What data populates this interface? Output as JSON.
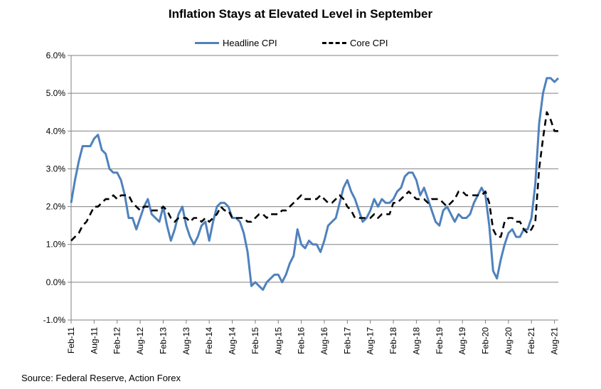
{
  "chart_data": {
    "type": "line",
    "title": "Inflation Stays at Elevated Level in September",
    "xlabel": "",
    "ylabel": "",
    "ylim": [
      -1.0,
      6.0
    ],
    "yticks": [
      "-1.0%",
      "0.0%",
      "1.0%",
      "2.0%",
      "3.0%",
      "4.0%",
      "5.0%",
      "6.0%"
    ],
    "ytick_values": [
      -1,
      0,
      1,
      2,
      3,
      4,
      5,
      6
    ],
    "x_start": "Feb-11",
    "x_end": "Sep-21",
    "xticks": [
      "Feb-11",
      "Aug-11",
      "Feb-12",
      "Aug-12",
      "Feb-13",
      "Aug-13",
      "Feb-14",
      "Aug-14",
      "Feb-15",
      "Aug-15",
      "Feb-16",
      "Aug-16",
      "Feb-17",
      "Aug-17",
      "Feb-18",
      "Aug-18",
      "Feb-19",
      "Aug-19",
      "Feb-20",
      "Aug-20",
      "Feb-21",
      "Aug-21"
    ],
    "grid": true,
    "legend_position": "top",
    "series": [
      {
        "name": "Headline CPI",
        "color": "#4f81bd",
        "style": "solid",
        "values": [
          2.1,
          2.7,
          3.2,
          3.6,
          3.6,
          3.6,
          3.8,
          3.9,
          3.5,
          3.4,
          3.0,
          2.9,
          2.9,
          2.7,
          2.3,
          1.7,
          1.7,
          1.4,
          1.7,
          2.0,
          2.2,
          1.8,
          1.7,
          1.6,
          2.0,
          1.5,
          1.1,
          1.4,
          1.8,
          2.0,
          1.5,
          1.2,
          1.0,
          1.2,
          1.5,
          1.6,
          1.1,
          1.6,
          2.0,
          2.1,
          2.1,
          2.0,
          1.7,
          1.7,
          1.6,
          1.3,
          0.8,
          -0.1,
          0.0,
          -0.1,
          -0.2,
          0.0,
          0.1,
          0.2,
          0.2,
          0.0,
          0.2,
          0.5,
          0.7,
          1.4,
          1.0,
          0.9,
          1.1,
          1.0,
          1.0,
          0.8,
          1.1,
          1.5,
          1.6,
          1.7,
          2.1,
          2.5,
          2.7,
          2.4,
          2.2,
          1.9,
          1.6,
          1.7,
          1.9,
          2.2,
          2.0,
          2.2,
          2.1,
          2.1,
          2.2,
          2.4,
          2.5,
          2.8,
          2.9,
          2.9,
          2.7,
          2.3,
          2.5,
          2.2,
          1.9,
          1.6,
          1.5,
          1.9,
          2.0,
          1.8,
          1.6,
          1.8,
          1.7,
          1.7,
          1.8,
          2.1,
          2.3,
          2.5,
          2.3,
          1.5,
          0.3,
          0.1,
          0.6,
          1.0,
          1.3,
          1.4,
          1.2,
          1.2,
          1.4,
          1.4,
          1.7,
          2.6,
          4.2,
          5.0,
          5.4,
          5.4,
          5.3,
          5.4
        ]
      },
      {
        "name": "Core CPI",
        "color": "#000000",
        "style": "dashed",
        "values": [
          1.1,
          1.2,
          1.3,
          1.5,
          1.6,
          1.8,
          2.0,
          2.0,
          2.1,
          2.2,
          2.2,
          2.3,
          2.2,
          2.3,
          2.3,
          2.3,
          2.1,
          2.0,
          1.9,
          2.0,
          2.0,
          1.9,
          1.9,
          1.9,
          2.0,
          1.9,
          1.7,
          1.6,
          1.7,
          1.7,
          1.7,
          1.6,
          1.7,
          1.7,
          1.6,
          1.7,
          1.6,
          1.7,
          1.8,
          2.0,
          1.9,
          1.9,
          1.7,
          1.7,
          1.7,
          1.7,
          1.6,
          1.6,
          1.7,
          1.8,
          1.8,
          1.7,
          1.8,
          1.8,
          1.8,
          1.9,
          1.9,
          2.0,
          2.1,
          2.2,
          2.3,
          2.2,
          2.2,
          2.2,
          2.2,
          2.3,
          2.2,
          2.1,
          2.1,
          2.2,
          2.3,
          2.2,
          2.0,
          1.9,
          1.7,
          1.7,
          1.7,
          1.7,
          1.7,
          1.8,
          1.7,
          1.8,
          1.8,
          1.8,
          2.1,
          2.1,
          2.2,
          2.3,
          2.4,
          2.3,
          2.2,
          2.2,
          2.2,
          2.1,
          2.2,
          2.2,
          2.2,
          2.1,
          2.0,
          2.1,
          2.2,
          2.4,
          2.4,
          2.3,
          2.3,
          2.3,
          2.3,
          2.3,
          2.4,
          2.1,
          1.4,
          1.2,
          1.2,
          1.6,
          1.7,
          1.7,
          1.6,
          1.6,
          1.4,
          1.3,
          1.4,
          1.6,
          3.0,
          3.8,
          4.5,
          4.3,
          4.0,
          4.0
        ]
      }
    ]
  },
  "source": "Source: Federal Reserve, Action Forex"
}
